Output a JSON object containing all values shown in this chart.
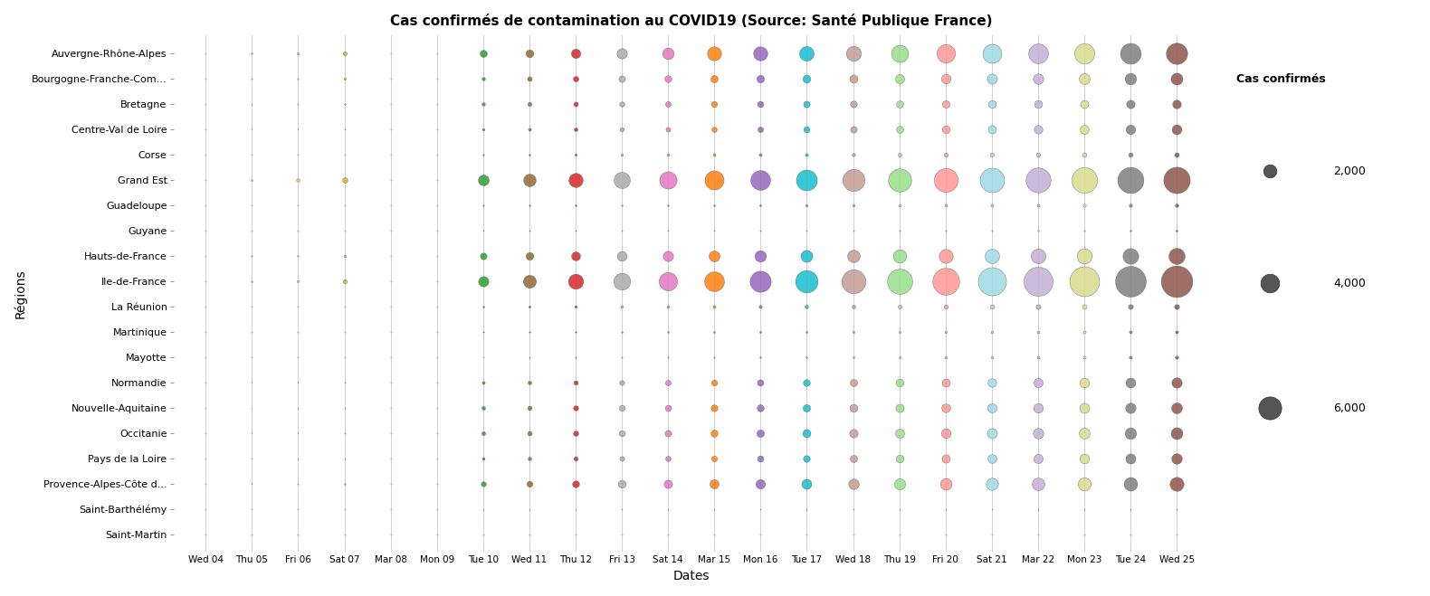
{
  "title": "Cas confirmés de contamination au COVID19 (Source: Santé Publique France)",
  "xlabel": "Dates",
  "ylabel": "Régions",
  "regions": [
    "Auvergne-Rhône-Alpes",
    "Bourgogne-Franche-Com...",
    "Bretagne",
    "Centre-Val de Loire",
    "Corse",
    "Grand Est",
    "Guadeloupe",
    "Guyane",
    "Hauts-de-France",
    "Ile-de-France",
    "La Réunion",
    "Martinique",
    "Mayotte",
    "Normandie",
    "Nouvelle-Aquitaine",
    "Occitanie",
    "Pays de la Loire",
    "Provence-Alpes-Côte d...",
    "Saint-Barthélémy",
    "Saint-Martin"
  ],
  "dates": [
    "Wed 04",
    "Thu 05",
    "Fri 06",
    "Sat 07",
    "Mar 08",
    "Mon 09",
    "Tue 10",
    "Wed 11",
    "Thu 12",
    "Fri 13",
    "Sat 14",
    "Mar 15",
    "Mon 16",
    "Tue 17",
    "Wed 18",
    "Thu 19",
    "Fri 20",
    "Sat 21",
    "Mar 22",
    "Mon 23",
    "Tue 24",
    "Wed 25"
  ],
  "date_colors": [
    "#1f77b4",
    "#aec7e8",
    "#ffbb78",
    "#bcbd22",
    "#c7c7c7",
    "#c7c7c7",
    "#2ca02c",
    "#8c6d31",
    "#d62728",
    "#aaaaaa",
    "#e377c2",
    "#ff7f0e",
    "#9467bd",
    "#17becf",
    "#c49c94",
    "#98df8a",
    "#ff9896",
    "#9edae5",
    "#c5b0d5",
    "#dbdb8d",
    "#7f7f7f",
    "#8c564b"
  ],
  "data": {
    "Auvergne-Rhône-Alpes": [
      1,
      38,
      57,
      172,
      1,
      1,
      576,
      690,
      1005,
      1209,
      1527,
      2228,
      2278,
      2441,
      2575,
      3376,
      3907,
      4133,
      4469,
      4700,
      4948,
      5196
    ],
    "Bourgogne-Franche-Com...": [
      1,
      14,
      22,
      54,
      1,
      1,
      130,
      248,
      335,
      476,
      541,
      607,
      644,
      698,
      764,
      950,
      1047,
      1165,
      1226,
      1361,
      1497,
      1614
    ],
    "Bretagne": [
      1,
      6,
      10,
      21,
      1,
      1,
      126,
      178,
      240,
      290,
      344,
      395,
      435,
      470,
      510,
      561,
      617,
      675,
      714,
      761,
      804,
      849
    ],
    "Centre-Val de Loire": [
      1,
      3,
      4,
      8,
      1,
      1,
      66,
      98,
      146,
      195,
      246,
      305,
      355,
      419,
      483,
      584,
      680,
      757,
      836,
      929,
      1015,
      1098
    ],
    "Corse": [
      1,
      1,
      1,
      1,
      1,
      1,
      20,
      30,
      55,
      62,
      69,
      86,
      95,
      104,
      116,
      152,
      175,
      185,
      200,
      211,
      221,
      239
    ],
    "Grand Est": [
      1,
      40,
      126,
      316,
      1,
      1,
      1325,
      1785,
      2285,
      3010,
      3460,
      4162,
      4467,
      5000,
      5565,
      6080,
      6524,
      6848,
      7102,
      7494,
      7803,
      8012
    ],
    "Guadeloupe": [
      1,
      1,
      1,
      1,
      1,
      1,
      17,
      21,
      27,
      30,
      36,
      36,
      42,
      57,
      62,
      75,
      83,
      91,
      96,
      107,
      117,
      127
    ],
    "Guyane": [
      1,
      1,
      1,
      1,
      1,
      1,
      7,
      11,
      11,
      11,
      11,
      11,
      11,
      11,
      11,
      18,
      18,
      18,
      23,
      23,
      28,
      35
    ],
    "Hauts-de-France": [
      1,
      18,
      28,
      67,
      1,
      1,
      507,
      674,
      906,
      1078,
      1196,
      1341,
      1484,
      1627,
      1791,
      2016,
      2195,
      2358,
      2497,
      2646,
      2816,
      2971
    ],
    "Ile-de-France": [
      1,
      30,
      55,
      184,
      1,
      1,
      1210,
      1896,
      2604,
      3270,
      3855,
      4481,
      5104,
      5765,
      6517,
      7248,
      8279,
      9082,
      9691,
      10189,
      10815,
      11398
    ],
    "La Réunion": [
      1,
      1,
      1,
      1,
      1,
      1,
      33,
      50,
      69,
      73,
      84,
      94,
      116,
      134,
      145,
      168,
      194,
      220,
      245,
      256,
      271,
      278
    ],
    "Martinique": [
      1,
      1,
      1,
      1,
      1,
      1,
      15,
      21,
      23,
      28,
      32,
      37,
      40,
      44,
      47,
      54,
      66,
      79,
      83,
      91,
      95,
      99
    ],
    "Mayotte": [
      1,
      1,
      1,
      1,
      1,
      1,
      1,
      9,
      13,
      14,
      16,
      18,
      24,
      29,
      35,
      47,
      55,
      67,
      79,
      92,
      106,
      118
    ],
    "Normandie": [
      1,
      3,
      5,
      10,
      1,
      1,
      96,
      147,
      214,
      270,
      335,
      402,
      463,
      533,
      593,
      672,
      766,
      854,
      965,
      1055,
      1130,
      1213
    ],
    "Nouvelle-Aquitaine": [
      1,
      3,
      4,
      9,
      1,
      1,
      144,
      209,
      293,
      371,
      437,
      512,
      565,
      628,
      706,
      787,
      882,
      967,
      1054,
      1137,
      1228,
      1328
    ],
    "Occitanie": [
      1,
      3,
      4,
      13,
      1,
      1,
      166,
      231,
      318,
      416,
      493,
      567,
      634,
      726,
      818,
      933,
      1046,
      1148,
      1247,
      1355,
      1480,
      1590
    ],
    "Pays de la Loire": [
      1,
      1,
      4,
      6,
      1,
      1,
      82,
      131,
      195,
      258,
      316,
      378,
      445,
      516,
      592,
      680,
      779,
      878,
      967,
      1076,
      1163,
      1255
    ],
    "Provence-Alpes-Côte d...": [
      1,
      5,
      12,
      30,
      1,
      1,
      284,
      395,
      551,
      682,
      812,
      946,
      1030,
      1136,
      1241,
      1396,
      1553,
      1674,
      1808,
      1949,
      2092,
      2233
    ],
    "Saint-Barthélémy": [
      1,
      1,
      1,
      1,
      1,
      1,
      3,
      3,
      3,
      6,
      6,
      6,
      6,
      6,
      6,
      6,
      6,
      6,
      6,
      6,
      6,
      6
    ],
    "Saint-Martin": [
      1,
      1,
      1,
      1,
      1,
      1,
      1,
      2,
      2,
      2,
      2,
      2,
      2,
      2,
      2,
      2,
      2,
      2,
      2,
      2,
      2,
      2
    ]
  },
  "legend_sizes": [
    2000,
    4000,
    6000
  ],
  "legend_title": "Cas confirmés",
  "scale_factor": 0.055,
  "background_color": "#ffffff",
  "grid_color": "#d0d0d0"
}
